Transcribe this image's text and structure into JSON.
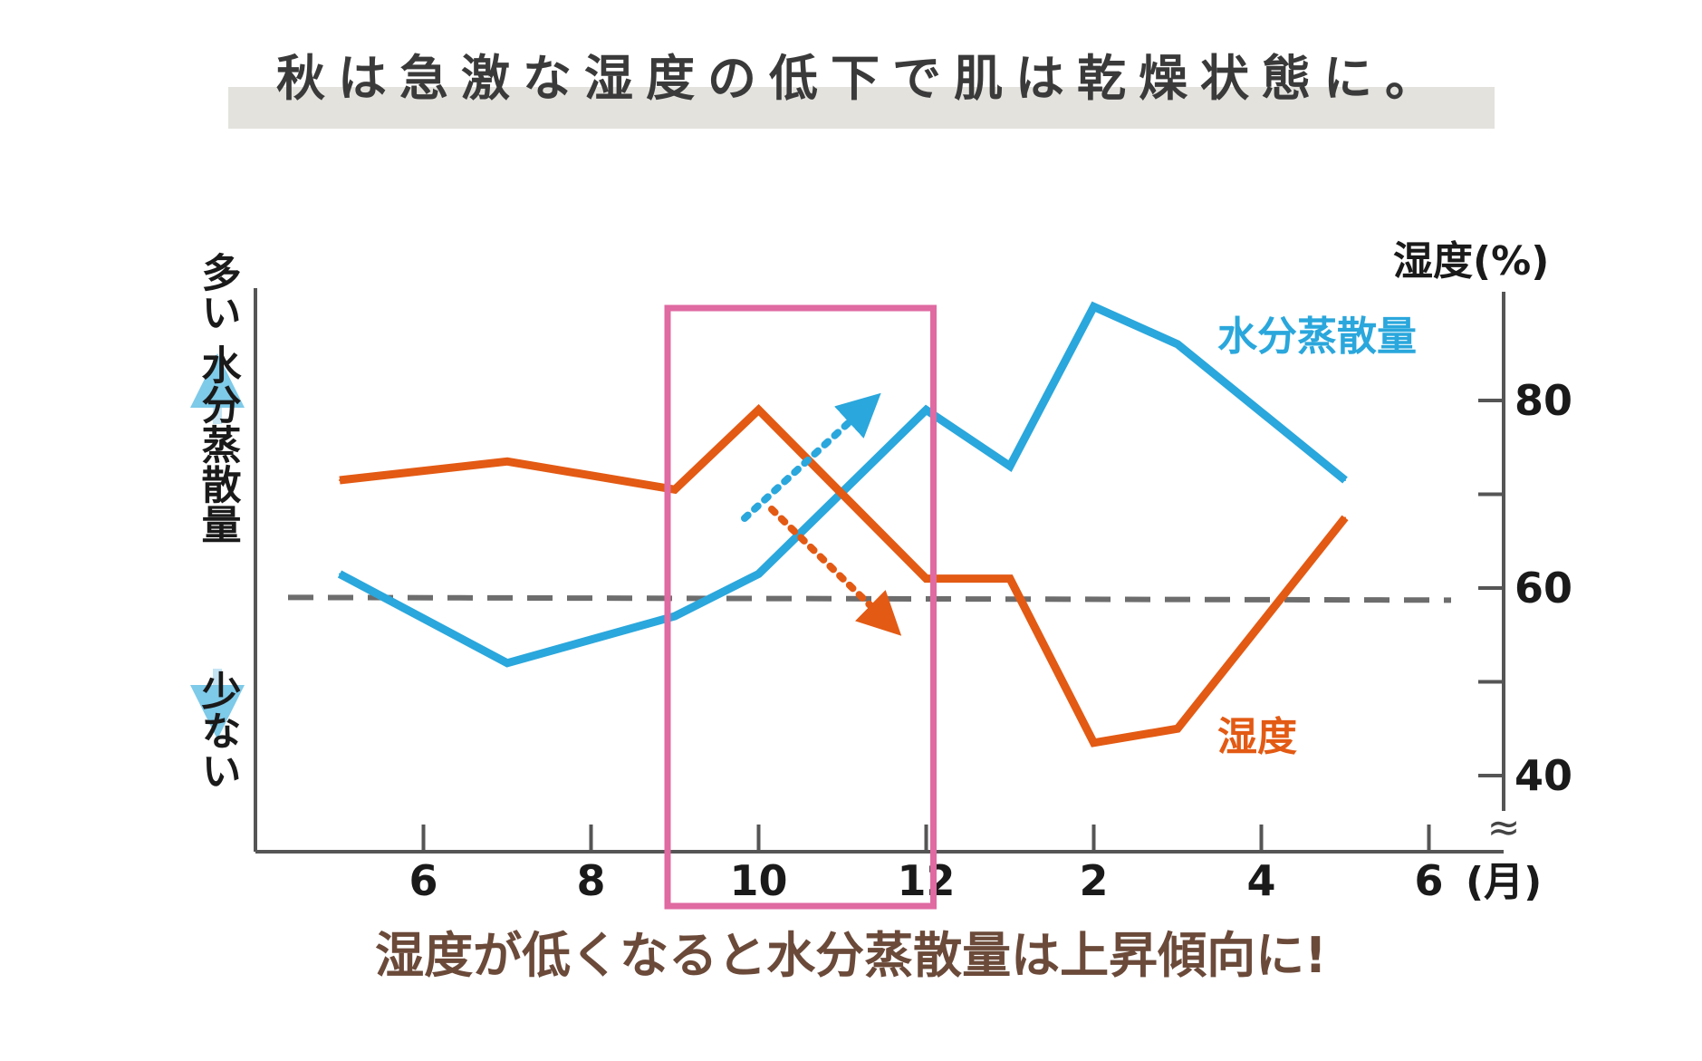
{
  "page": {
    "heading": "秋は急激な湿度の低下で肌は乾燥状態に。",
    "caption": "湿度が低くなると水分蒸散量は上昇傾向に!"
  },
  "colors": {
    "evaporation": "#2aa7dc",
    "humidity": "#e35a14",
    "highlight": "#e06aa2",
    "dashed": "#6d6d6d",
    "axis": "#555555",
    "text": "#1a1a1a"
  },
  "chart_data": {
    "type": "line",
    "title": "",
    "x": [
      "5",
      "6",
      "7",
      "8",
      "9",
      "10",
      "11",
      "12",
      "1",
      "2",
      "3",
      "4",
      "5"
    ],
    "xtick_labels": [
      "6",
      "8",
      "10",
      "12",
      "2",
      "4",
      "6"
    ],
    "xlabel": "(月)",
    "ylabel_right": "湿度(%)",
    "ylabel_left": {
      "top": "多い",
      "middle": "水分蒸散量",
      "bottom": "少ない"
    },
    "ytick_labels": [
      "80",
      "60",
      "40"
    ],
    "ylim": [
      35,
      90
    ],
    "series": [
      {
        "name": "水分蒸散量",
        "color": "#2aa7dc",
        "values": [
          61.5,
          null,
          52,
          null,
          57,
          61.5,
          null,
          79,
          73,
          90,
          86,
          null,
          71.5
        ]
      },
      {
        "name": "湿度",
        "color": "#e35a14",
        "values": [
          71.5,
          null,
          73.5,
          null,
          70.5,
          79,
          null,
          61,
          61,
          43.5,
          45,
          null,
          67.5
        ]
      }
    ],
    "reference_line": {
      "value": 59,
      "style": "dashed"
    },
    "highlight_range": [
      "9",
      "12"
    ],
    "annotations": [
      {
        "type": "arrow-up",
        "series": "水分蒸散量"
      },
      {
        "type": "arrow-down",
        "series": "湿度"
      }
    ],
    "axis_break": "≈"
  }
}
